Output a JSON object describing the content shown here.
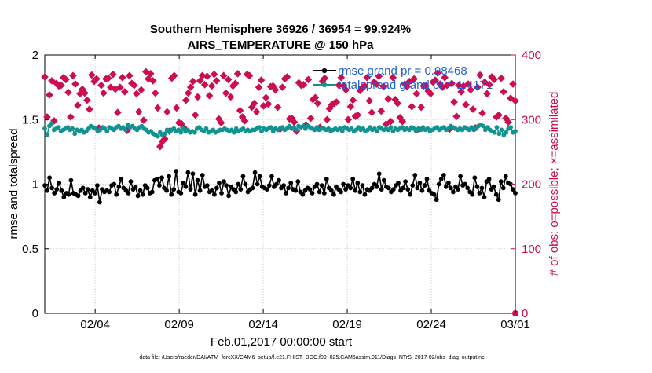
{
  "chart_data": {
    "type": "line",
    "title": "Southern Hemisphere 36926 / 36954 = 99.924%",
    "subtitle": "AIRS_TEMPERATURE @ 150 hPa",
    "xlabel": "Feb.01,2017 00:00:00 start",
    "ylabel_left": "rmse and totalspread",
    "ylabel_right": "# of obs: o=possible; ×=assimilated",
    "x_ticks": [
      "02/04",
      "02/09",
      "02/14",
      "02/19",
      "02/24",
      "03/01"
    ],
    "x_tick_days": [
      3,
      8,
      13,
      18,
      23,
      28
    ],
    "xlim_days": [
      0,
      28
    ],
    "ylim_left": [
      0,
      2
    ],
    "yticks_left": [
      "0",
      "0.5",
      "1",
      "1.5",
      "2"
    ],
    "ylim_right": [
      0,
      400
    ],
    "yticks_right": [
      "0",
      "100",
      "200",
      "300",
      "400"
    ],
    "grid": true,
    "legend_position": "top-right",
    "legend": [
      {
        "name": "rmse grand pr = 0.98468"
      },
      {
        "name": "totalspread grand pr = 1.4171"
      }
    ],
    "series": [
      {
        "name": "rmse grand pr = 0.98468",
        "axis": "left",
        "marker": "circle",
        "values": [
          0.99,
          0.95,
          1.05,
          0.97,
          0.93,
          0.96,
          1.01,
          0.95,
          0.9,
          0.93,
          0.92,
          1.03,
          0.93,
          0.92,
          0.91,
          0.95,
          0.97,
          0.93,
          0.96,
          0.9,
          0.95,
          0.93,
          0.99,
          0.86,
          0.96,
          0.94,
          0.95,
          0.94,
          0.99,
          1.0,
          0.92,
          0.98,
          1.04,
          0.97,
          0.95,
          0.93,
          1.02,
          0.96,
          0.98,
          0.91,
          0.95,
          0.92,
          0.99,
          0.97,
          0.93,
          0.94,
          1.03,
          1.04,
          0.99,
          1.05,
          0.97,
          0.95,
          1.06,
          0.92,
          0.96,
          1.1,
          0.94,
          0.93,
          1.01,
          0.98,
          1.09,
          0.96,
          1.08,
          0.92,
          1.03,
          0.95,
          1.07,
          0.98,
          0.99,
          0.94,
          0.95,
          0.92,
          0.97,
          1.01,
          0.93,
          1.02,
          0.99,
          0.91,
          0.98,
          0.96,
          0.94,
          1.0,
          0.96,
          1.06,
          1.0,
          0.94,
          0.96,
          0.97,
          1.09,
          1.0,
          1.06,
          0.98,
          0.97,
          0.96,
          0.99,
          1.06,
          0.98,
          1.0,
          1.03,
          0.97,
          0.99,
          0.93,
          0.97,
          1.01,
          0.96,
          0.95,
          1.02,
          0.94,
          0.92,
          0.95,
          0.97,
          0.96,
          0.93,
          0.98,
          1.0,
          0.94,
          0.99,
          0.93,
          1.04,
          0.97,
          0.95,
          0.92,
          0.98,
          0.96,
          0.94,
          1.0,
          0.96,
          0.99,
          0.97,
          1.04,
          0.95,
          1.01,
          0.94,
          0.99,
          0.92,
          0.96,
          0.95,
          0.97,
          1.0,
          0.98,
          1.08,
          0.96,
          1.03,
          0.98,
          0.97,
          0.94,
          0.96,
          0.99,
          1.01,
          0.95,
          0.97,
          1.02,
          0.96,
          0.92,
          0.99,
          1.07,
          0.97,
          1.01,
          0.95,
          0.99,
          1.04,
          0.95,
          0.93,
          0.92,
          0.88,
          1.0,
          1.04,
          1.07,
          0.98,
          1.01,
          0.97,
          0.94,
          0.98,
          0.96,
          1.06,
          0.99,
          1.0,
          0.97,
          0.94,
          0.92,
          1.05,
          0.98,
          0.93,
          0.97,
          0.9,
          1.02,
          1.04,
          0.96,
          0.98,
          0.92,
          0.88,
          1.02,
          0.97,
          1.06,
          1.01,
          1.0,
          0.96,
          0.93
        ]
      },
      {
        "name": "totalspread grand pr = 1.4171",
        "axis": "left",
        "marker": "circle",
        "values": [
          1.43,
          1.38,
          1.45,
          1.47,
          1.42,
          1.43,
          1.44,
          1.41,
          1.42,
          1.43,
          1.44,
          1.42,
          1.43,
          1.39,
          1.42,
          1.41,
          1.42,
          1.4,
          1.41,
          1.43,
          1.45,
          1.44,
          1.43,
          1.41,
          1.42,
          1.44,
          1.43,
          1.41,
          1.44,
          1.43,
          1.42,
          1.44,
          1.45,
          1.43,
          1.44,
          1.42,
          1.46,
          1.44,
          1.45,
          1.43,
          1.42,
          1.44,
          1.45,
          1.43,
          1.42,
          1.4,
          1.41,
          1.39,
          1.38,
          1.37,
          1.4,
          1.38,
          1.39,
          1.42,
          1.41,
          1.42,
          1.43,
          1.41,
          1.42,
          1.4,
          1.43,
          1.41,
          1.42,
          1.4,
          1.41,
          1.4,
          1.43,
          1.44,
          1.42,
          1.41,
          1.43,
          1.4,
          1.41,
          1.42,
          1.4,
          1.41,
          1.42,
          1.42,
          1.43,
          1.42,
          1.41,
          1.42,
          1.4,
          1.43,
          1.41,
          1.42,
          1.43,
          1.41,
          1.42,
          1.41,
          1.42,
          1.42,
          1.43,
          1.44,
          1.41,
          1.43,
          1.42,
          1.43,
          1.44,
          1.41,
          1.43,
          1.42,
          1.43,
          1.44,
          1.42,
          1.43,
          1.45,
          1.43,
          1.44,
          1.42,
          1.45,
          1.44,
          1.45,
          1.43,
          1.45,
          1.44,
          1.43,
          1.42,
          1.44,
          1.42,
          1.43,
          1.43,
          1.42,
          1.43,
          1.41,
          1.42,
          1.43,
          1.42,
          1.43,
          1.41,
          1.44,
          1.43,
          1.42,
          1.43,
          1.41,
          1.42,
          1.44,
          1.42,
          1.43,
          1.41,
          1.42,
          1.44,
          1.42,
          1.43,
          1.41,
          1.44,
          1.43,
          1.42,
          1.43,
          1.42,
          1.44,
          1.41,
          1.43,
          1.42,
          1.43,
          1.44,
          1.42,
          1.43,
          1.42,
          1.44,
          1.43,
          1.41,
          1.43,
          1.42,
          1.44,
          1.42,
          1.43,
          1.41,
          1.42,
          1.43,
          1.44,
          1.42,
          1.43,
          1.44,
          1.42,
          1.43,
          1.45,
          1.44,
          1.43,
          1.42,
          1.43,
          1.42,
          1.44,
          1.43,
          1.42,
          1.44,
          1.42,
          1.43,
          1.45,
          1.46,
          1.45,
          1.42,
          1.44,
          1.42,
          1.41,
          1.4,
          1.44,
          1.39,
          1.42,
          1.38,
          1.4,
          1.43,
          1.44,
          1.4,
          1.41
        ]
      },
      {
        "name": "# of obs possible",
        "axis": "right",
        "marker": "circle",
        "values": []
      },
      {
        "name": "# of obs assimilated",
        "axis": "right",
        "marker": "x",
        "values": [
          366,
          304,
          338,
          360,
          298,
          356,
          352,
          353,
          365,
          362,
          342,
          304,
          368,
          355,
          322,
          340,
          347,
          341,
          330,
          316,
          369,
          359,
          363,
          287,
          353,
          341,
          363,
          364,
          350,
          370,
          347,
          311,
          350,
          365,
          343,
          283,
          368,
          356,
          353,
          340,
          312,
          346,
          299,
          374,
          363,
          371,
          360,
          341,
          318,
          258,
          266,
          270,
          312,
          282,
          364,
          368,
          318,
          295,
          294,
          288,
          330,
          341,
          350,
          359,
          307,
          335,
          360,
          368,
          354,
          367,
          337,
          352,
          370,
          360,
          301,
          295,
          368,
          341,
          362,
          335,
          352,
          356,
          371,
          314,
          304,
          298,
          370,
          368,
          319,
          325,
          312,
          350,
          361,
          321,
          334,
          324,
          351,
          352,
          346,
          319,
          285,
          350,
          363,
          366,
          301,
          302,
          296,
          282,
          357,
          353,
          354,
          292,
          362,
          302,
          331,
          334,
          325,
          288,
          359,
          364,
          300,
          317,
          323,
          325,
          327,
          353,
          365,
          352,
          346,
          300,
          320,
          330,
          305,
          307,
          345,
          350,
          352,
          365,
          329,
          311,
          358,
          355,
          367,
          313,
          351,
          293,
          332,
          297,
          365,
          331,
          325,
          303,
          297,
          355,
          351,
          359,
          320,
          363,
          340,
          285,
          319,
          352,
          352,
          344,
          340,
          358,
          361,
          372,
          355,
          350,
          365,
          353,
          285,
          356,
          327,
          305,
          353,
          343,
          352,
          323,
          355,
          346,
          316,
          287,
          350,
          369,
          310,
          358,
          340,
          354,
          366,
          362,
          304,
          307,
          364,
          343,
          302,
          296,
          333,
          355,
          329
        ]
      }
    ],
    "footnote": "data file: /Users/raeder/DAI/ATM_forcXX/CAM6_setup/f.e21.FHIST_BGC.f09_025.CAM6assim.011/Diags_NTrS_2017-02/obs_diag_output.nc",
    "colors": {
      "rmse": "#000000",
      "totalspread": "#139390",
      "obs": "#cc0d52",
      "legend_text": "#1f5fd6",
      "grid": "#c8c8c8"
    }
  }
}
